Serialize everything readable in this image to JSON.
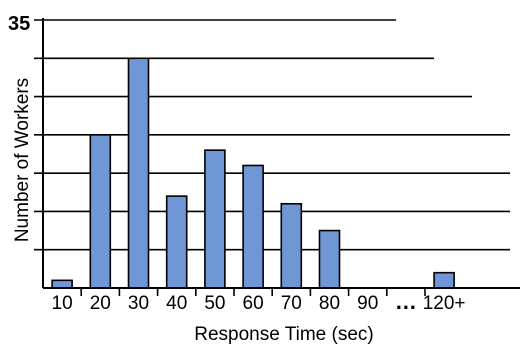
{
  "chart_data": {
    "type": "bar",
    "title": "",
    "xlabel": "Response Time (sec)",
    "ylabel": "Number of Workers",
    "ylim": [
      0,
      35
    ],
    "y_top_label": "35",
    "gridlines": 7,
    "grid": true,
    "categories": [
      "10",
      "20",
      "30",
      "40",
      "50",
      "60",
      "70",
      "80",
      "90",
      "…",
      "120+"
    ],
    "values": [
      1,
      20,
      30,
      12,
      18,
      16,
      11,
      7.5,
      0,
      0,
      2
    ],
    "bar_color": "#6f97d6",
    "bar_edge_color": "#000000"
  }
}
